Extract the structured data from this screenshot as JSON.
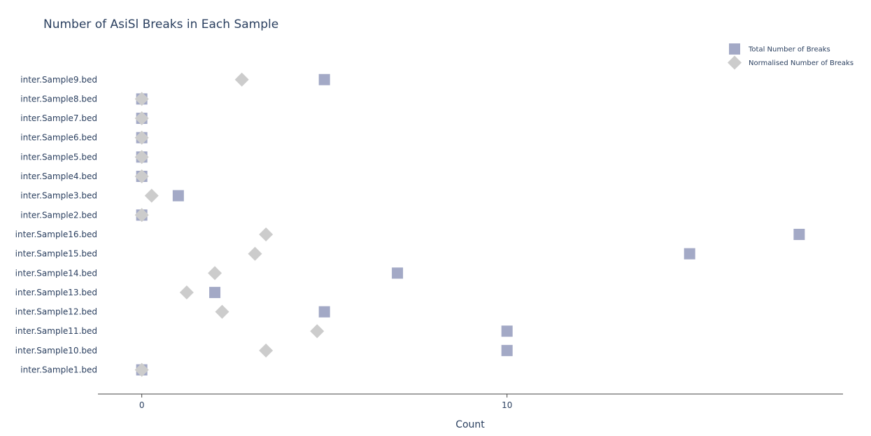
{
  "chart_data": {
    "type": "scatter",
    "title": "Number of AsiSl Breaks in Each Sample",
    "xlabel": "Count",
    "ylabel": "",
    "xlim": [
      -1.2,
      19.2
    ],
    "xticks": [
      "0",
      "10"
    ],
    "categories": [
      "inter.Sample1.bed",
      "inter.Sample10.bed",
      "inter.Sample11.bed",
      "inter.Sample12.bed",
      "inter.Sample13.bed",
      "inter.Sample14.bed",
      "inter.Sample15.bed",
      "inter.Sample16.bed",
      "inter.Sample2.bed",
      "inter.Sample3.bed",
      "inter.Sample4.bed",
      "inter.Sample5.bed",
      "inter.Sample6.bed",
      "inter.Sample7.bed",
      "inter.Sample8.bed",
      "inter.Sample9.bed"
    ],
    "series": [
      {
        "name": "Total Number of Breaks",
        "marker": "square",
        "color": "#a3a9c6",
        "values": [
          0,
          10,
          10,
          5,
          2,
          7,
          15,
          18,
          0,
          1,
          0,
          0,
          0,
          0,
          0,
          5
        ]
      },
      {
        "name": "Normalised Number of Breaks",
        "marker": "diamond",
        "color": "#cccccc",
        "values": [
          0,
          3.4,
          4.8,
          2.2,
          1.23,
          2.0,
          3.1,
          3.4,
          0,
          0.27,
          0,
          0,
          0,
          0,
          0,
          2.74
        ]
      }
    ],
    "grid": false,
    "legend_position": "top-right"
  }
}
